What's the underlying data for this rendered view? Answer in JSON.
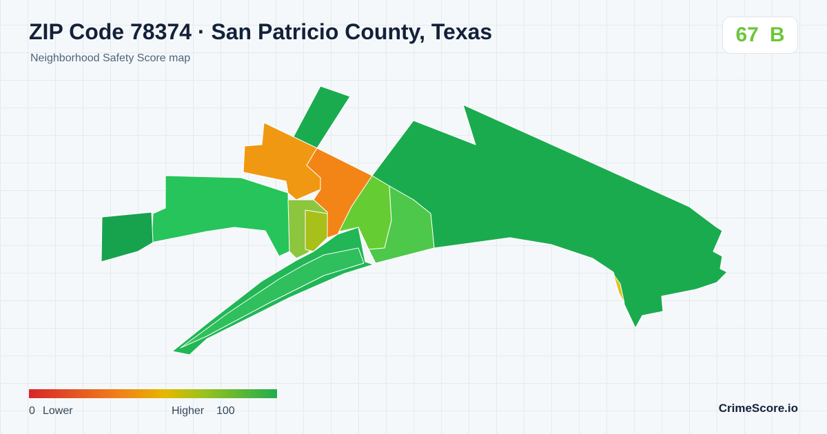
{
  "header": {
    "title": "ZIP Code 78374 · San Patricio County, Texas",
    "subtitle": "Neighborhood Safety Score map"
  },
  "score": {
    "value": 67,
    "grade": "B"
  },
  "legend": {
    "min": 0,
    "min_label": "Lower",
    "max_label": "Higher",
    "max": 100
  },
  "brand": "CrimeScore.io"
}
